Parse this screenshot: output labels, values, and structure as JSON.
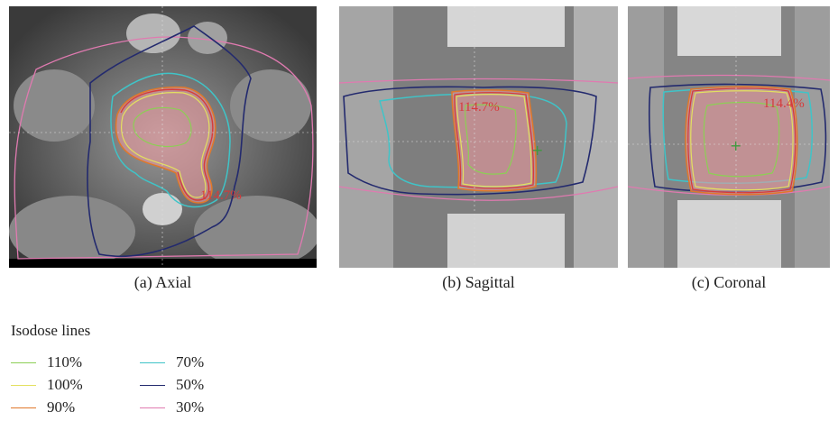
{
  "panels": [
    {
      "caption": "(a) Axial",
      "max_dose_label": "114.7%"
    },
    {
      "caption": "(b) Sagittal",
      "max_dose_label": "114.7%"
    },
    {
      "caption": "(c) Coronal",
      "max_dose_label": "114.4%"
    }
  ],
  "legend": {
    "title": "Isodose lines",
    "items": [
      {
        "label": "110%",
        "color": "#8ccf55"
      },
      {
        "label": "100%",
        "color": "#e3e060"
      },
      {
        "label": "90%",
        "color": "#e0782a"
      },
      {
        "label": "70%",
        "color": "#3fc4c8"
      },
      {
        "label": "50%",
        "color": "#232a6e"
      },
      {
        "label": "30%",
        "color": "#e07ab0"
      }
    ]
  }
}
